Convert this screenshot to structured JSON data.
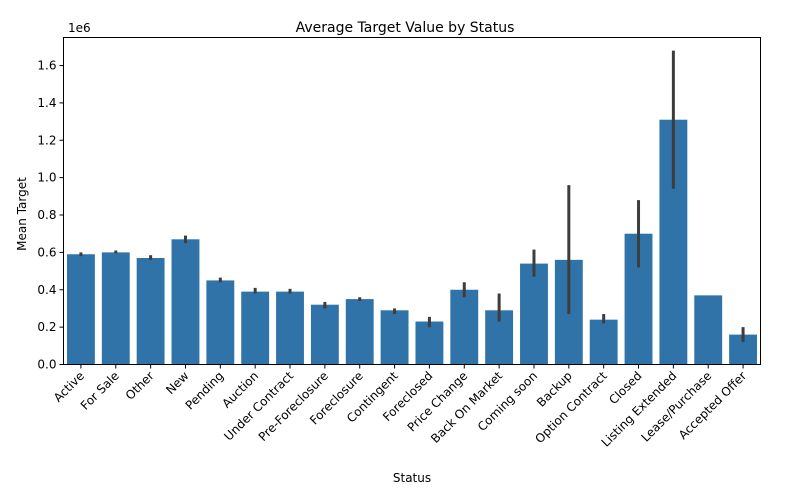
{
  "chart_data": {
    "type": "bar",
    "title": "Average Target Value by Status",
    "xlabel": "Status",
    "ylabel": "Mean Target",
    "y_offset_label": "1e6",
    "ylim": [
      0,
      1.75
    ],
    "yticks": [
      "0.0",
      "0.2",
      "0.4",
      "0.6",
      "0.8",
      "1.0",
      "1.2",
      "1.4",
      "1.6"
    ],
    "bar_color": "#2f73a8",
    "error_color": "#3d3d3d",
    "categories": [
      "Active",
      "For Sale",
      "Other",
      "New",
      "Pending",
      "Auction",
      "Under Contract",
      "Pre-Foreclosure",
      "Foreclosure",
      "Contingent",
      "Foreclosed",
      "Price Change",
      "Back On Market",
      "Coming soon",
      "Backup",
      "Option Contract",
      "Closed",
      "Listing Extended",
      "Lease/Purchase",
      "Accepted Offer"
    ],
    "values": [
      0.59,
      0.6,
      0.57,
      0.67,
      0.45,
      0.39,
      0.39,
      0.32,
      0.35,
      0.29,
      0.23,
      0.4,
      0.29,
      0.54,
      0.56,
      0.24,
      0.7,
      1.31,
      0.37,
      0.16
    ],
    "error_low": [
      0.58,
      0.595,
      0.56,
      0.65,
      0.44,
      0.38,
      0.38,
      0.3,
      0.34,
      0.27,
      0.2,
      0.36,
      0.23,
      0.47,
      0.27,
      0.22,
      0.52,
      0.94,
      0.37,
      0.12
    ],
    "error_high": [
      0.6,
      0.61,
      0.585,
      0.69,
      0.465,
      0.41,
      0.405,
      0.335,
      0.36,
      0.3,
      0.255,
      0.44,
      0.38,
      0.615,
      0.96,
      0.27,
      0.88,
      1.68,
      0.37,
      0.2
    ]
  }
}
